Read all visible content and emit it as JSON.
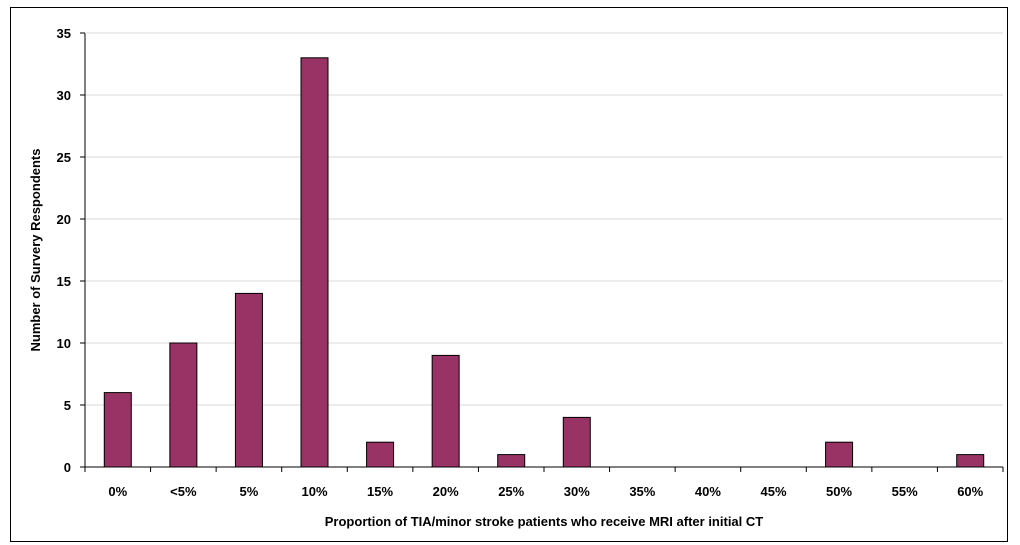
{
  "chart_data": {
    "type": "bar",
    "title": "",
    "xlabel": "Proportion of TIA/minor stroke patients who receive MRI after initial CT",
    "ylabel": "Number of Survery Respondents",
    "categories": [
      "0%",
      "<5%",
      "5%",
      "10%",
      "15%",
      "20%",
      "25%",
      "30%",
      "35%",
      "40%",
      "45%",
      "50%",
      "55%",
      "60%"
    ],
    "values": [
      6,
      10,
      14,
      33,
      2,
      9,
      1,
      4,
      0,
      0,
      0,
      2,
      0,
      1
    ],
    "ylim": [
      0,
      35
    ],
    "yticks": [
      0,
      5,
      10,
      15,
      20,
      25,
      30,
      35
    ],
    "grid": true,
    "legend": "none",
    "colors": {
      "bar": "#993366",
      "grid": "#d9d9d9"
    }
  }
}
